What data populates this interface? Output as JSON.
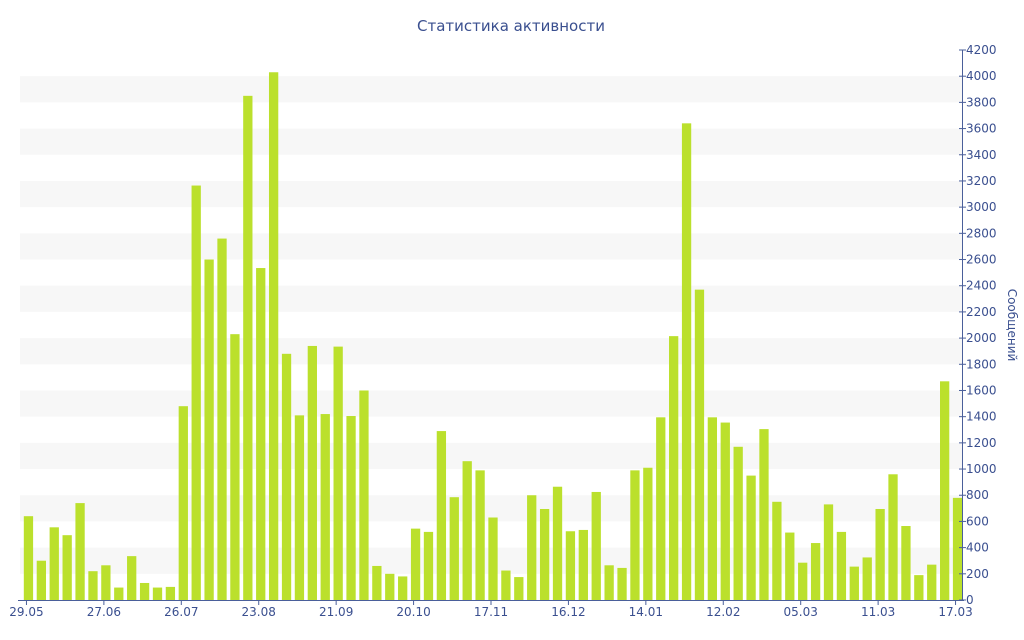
{
  "chart_data": {
    "type": "bar",
    "title": "Статистика активности",
    "xlabel": "",
    "ylabel": "Сообщений",
    "ylim": [
      0,
      4200
    ],
    "y_ticks": [
      0,
      200,
      400,
      600,
      800,
      1000,
      1200,
      1400,
      1600,
      1800,
      2000,
      2200,
      2400,
      2600,
      2800,
      3000,
      3200,
      3400,
      3600,
      3800,
      4000,
      4200
    ],
    "y_axis_side": "right",
    "x_tick_labels": [
      {
        "index": 0,
        "label": "29.05"
      },
      {
        "index": 6,
        "label": "27.06"
      },
      {
        "index": 12,
        "label": "26.07"
      },
      {
        "index": 18,
        "label": "23.08"
      },
      {
        "index": 24,
        "label": "21.09"
      },
      {
        "index": 30,
        "label": "20.10"
      },
      {
        "index": 36,
        "label": "17.11"
      },
      {
        "index": 42,
        "label": "16.12"
      },
      {
        "index": 48,
        "label": "14.01"
      },
      {
        "index": 54,
        "label": "12.02"
      },
      {
        "index": 60,
        "label": "05.03"
      },
      {
        "index": 66,
        "label": "11.03"
      },
      {
        "index": 72,
        "label": "17.03"
      }
    ],
    "values": [
      640,
      300,
      555,
      495,
      740,
      220,
      265,
      95,
      335,
      130,
      95,
      100,
      1480,
      3165,
      2600,
      2760,
      2030,
      3850,
      2535,
      4030,
      1880,
      1410,
      1940,
      1420,
      1935,
      1405,
      1600,
      260,
      200,
      180,
      545,
      520,
      1290,
      785,
      1060,
      990,
      630,
      225,
      175,
      800,
      695,
      865,
      525,
      535,
      825,
      265,
      245,
      990,
      1010,
      1395,
      2015,
      3640,
      2370,
      1395,
      1355,
      1170,
      950,
      1305,
      750,
      515,
      285,
      435,
      730,
      520,
      255,
      325,
      695,
      960,
      565,
      190,
      270,
      1670,
      780
    ],
    "grid": "alternating horizontal bands",
    "legend": "none",
    "colors": {
      "bar": "#bbe02c",
      "band": "#f7f7f7",
      "axis": "#4a5f9a",
      "text": "#3a4f8f"
    }
  }
}
